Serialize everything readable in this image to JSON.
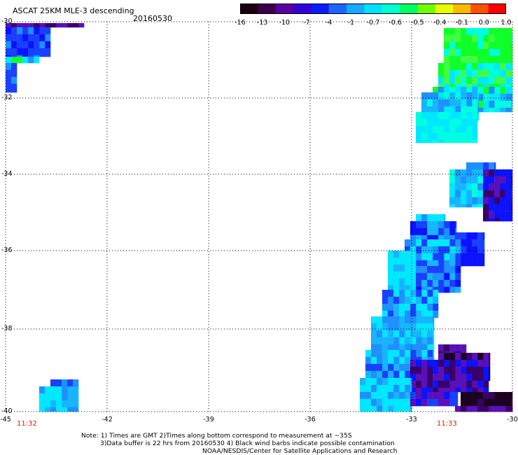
{
  "header": {
    "title": "ASCAT 25KM MLE-3 descending",
    "date": "20160530"
  },
  "colorbar": {
    "labels": [
      "-16",
      "-13",
      "-10",
      "-7",
      "-4",
      "-1",
      "-0.7",
      "-0.6",
      "-0.5",
      "-0.4",
      "-0.1",
      "0.0",
      "1.0"
    ],
    "colors": [
      "#1a0010",
      "#3a0048",
      "#5a00a0",
      "#3200d8",
      "#0a1cff",
      "#1a66ff",
      "#14a8ff",
      "#00e0ff",
      "#00ffd0",
      "#00ff60",
      "#70ff00",
      "#e8ff00",
      "#ffb800",
      "#ff5000",
      "#ff0000"
    ]
  },
  "axes": {
    "y_labels": [
      "-30",
      "-32",
      "-34",
      "-36",
      "-38",
      "-40"
    ],
    "x_labels": [
      "-45",
      "-42",
      "-39",
      "-36",
      "-33",
      "-30"
    ]
  },
  "times": {
    "left": "11:32",
    "right": "11:33"
  },
  "notes": {
    "line1": "Note: 1) Times are GMT 2)Times along bottom correspond to measurement at ~35S",
    "line2": "3)Data buffer is 22 hrs from 20160530 4) Black wind barbs indicate possible contamination",
    "line3": "NOAA/NESDIS/Center for Satellite Applications and Research"
  },
  "map_palette": {
    "deep_blue": "#1a40ff",
    "blue": "#0b12ff",
    "mid_blue": "#1e90ff",
    "light_blue": "#18b4ff",
    "cyan": "#00e8ff",
    "aqua": "#00ffe0",
    "green": "#10ff28",
    "lime": "#40ff40",
    "purple": "#5a10b8",
    "dark_purple": "#3a0068",
    "black_purple": "#1c0020"
  }
}
